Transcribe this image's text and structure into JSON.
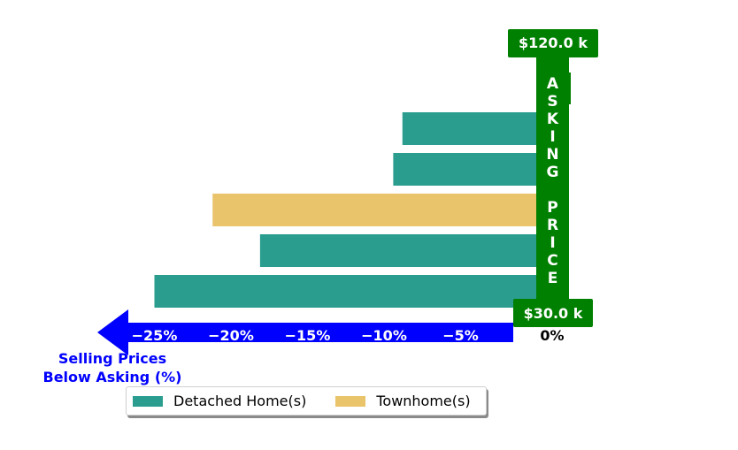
{
  "chart_data": {
    "type": "bar",
    "orientation": "horizontal",
    "categories": [
      "",
      "",
      "",
      "",
      ""
    ],
    "values": [
      -8.8,
      -9.4,
      -21.2,
      -18.1,
      -25.0
    ],
    "series_of_bar": [
      "Detached Home(s)",
      "Detached Home(s)",
      "Townhome(s)",
      "Detached Home(s)",
      "Detached Home(s)"
    ],
    "xlim": [
      -30,
      0
    ],
    "x_ticks": [
      -25,
      -20,
      -15,
      -10,
      -5,
      0
    ],
    "x_tick_labels": [
      "−25%",
      "−20%",
      "−15%",
      "−10%",
      "−5%",
      "0%"
    ],
    "xlabel_lines": [
      "Selling Prices",
      "Below Asking (%)"
    ],
    "asking_price_axis": {
      "letters": [
        "A",
        "S",
        "K",
        "I",
        "N",
        "G",
        "",
        "P",
        "R",
        "I",
        "C",
        "E"
      ],
      "top_label": "$120.0 k",
      "bottom_label": "$30.0 k"
    },
    "legend": {
      "placement": "bottom-center",
      "entries": [
        {
          "name": "Detached Home(s)",
          "color": "#2a9d8f"
        },
        {
          "name": "Townhome(s)",
          "color": "#e9c46a"
        }
      ]
    },
    "colors": {
      "Detached Home(s)": "#2a9d8f",
      "Townhome(s)": "#e9c46a",
      "axis_arrow": "#0000ff",
      "asking_bar": "#008000",
      "zero_label": "#000000"
    },
    "grid": false
  }
}
